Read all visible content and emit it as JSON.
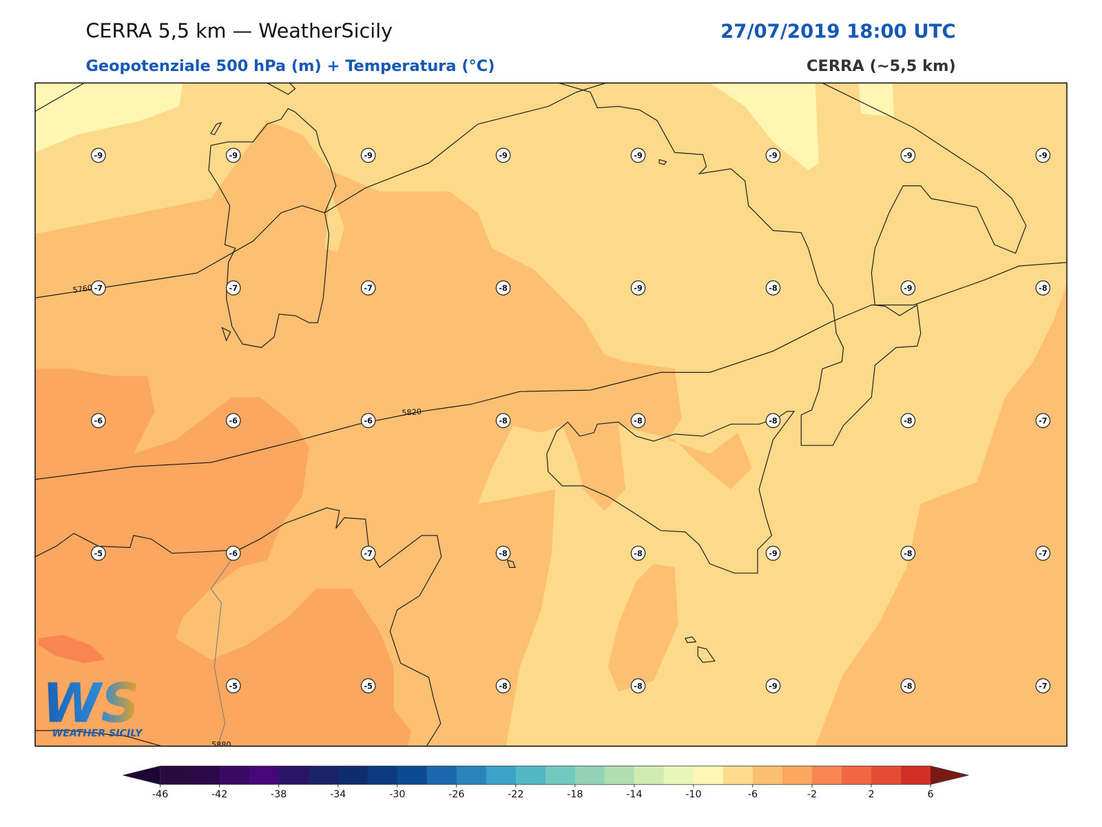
{
  "header": {
    "title": "CERRA 5,5 km — WeatherSicily",
    "datetime": "27/07/2019 18:00 UTC",
    "subtitle": "Geopotenziale 500 hPa (m) + Temperatura (°C)",
    "model": "CERRA (~5,5 km)"
  },
  "map": {
    "temperatures": [
      [
        -9,
        -9,
        -9,
        -9,
        -9,
        -9,
        -9,
        -9
      ],
      [
        -7,
        -7,
        -7,
        -8,
        -9,
        -8,
        -9,
        -8
      ],
      [
        -6,
        -6,
        -6,
        -8,
        -8,
        -8,
        -8,
        -7
      ],
      [
        -5,
        -6,
        -7,
        -8,
        -8,
        -9,
        -8,
        -7
      ],
      [
        null,
        -5,
        -5,
        -8,
        -8,
        -9,
        -8,
        -7
      ]
    ],
    "contour_labels": [
      "5760",
      "5820",
      "5880"
    ]
  },
  "colorbar": {
    "range": [
      -46,
      6
    ],
    "ticks": [
      -46,
      -42,
      -38,
      -34,
      -30,
      -26,
      -22,
      -18,
      -14,
      -10,
      -6,
      -2,
      2,
      6
    ],
    "colors": [
      "#2a0a3c",
      "#2d0848",
      "#3a0a62",
      "#46077a",
      "#2a1468",
      "#1a2268",
      "#0f2c6e",
      "#0a3a80",
      "#0b4b94",
      "#1b67ad",
      "#2b83bb",
      "#3aa3c6",
      "#52b8c2",
      "#71c8bd",
      "#93d4b8",
      "#b1deb1",
      "#d1ecb3",
      "#eaf6b7",
      "#fff6b4",
      "#fedb8a",
      "#fdbf71",
      "#fca75f",
      "#f98650",
      "#f26742",
      "#e44c33",
      "#d12f26"
    ],
    "under_color": "#1e0634",
    "over_color": "#7a1a14"
  },
  "logo": {
    "mark": "WS",
    "text": "WEATHER SICILY"
  }
}
